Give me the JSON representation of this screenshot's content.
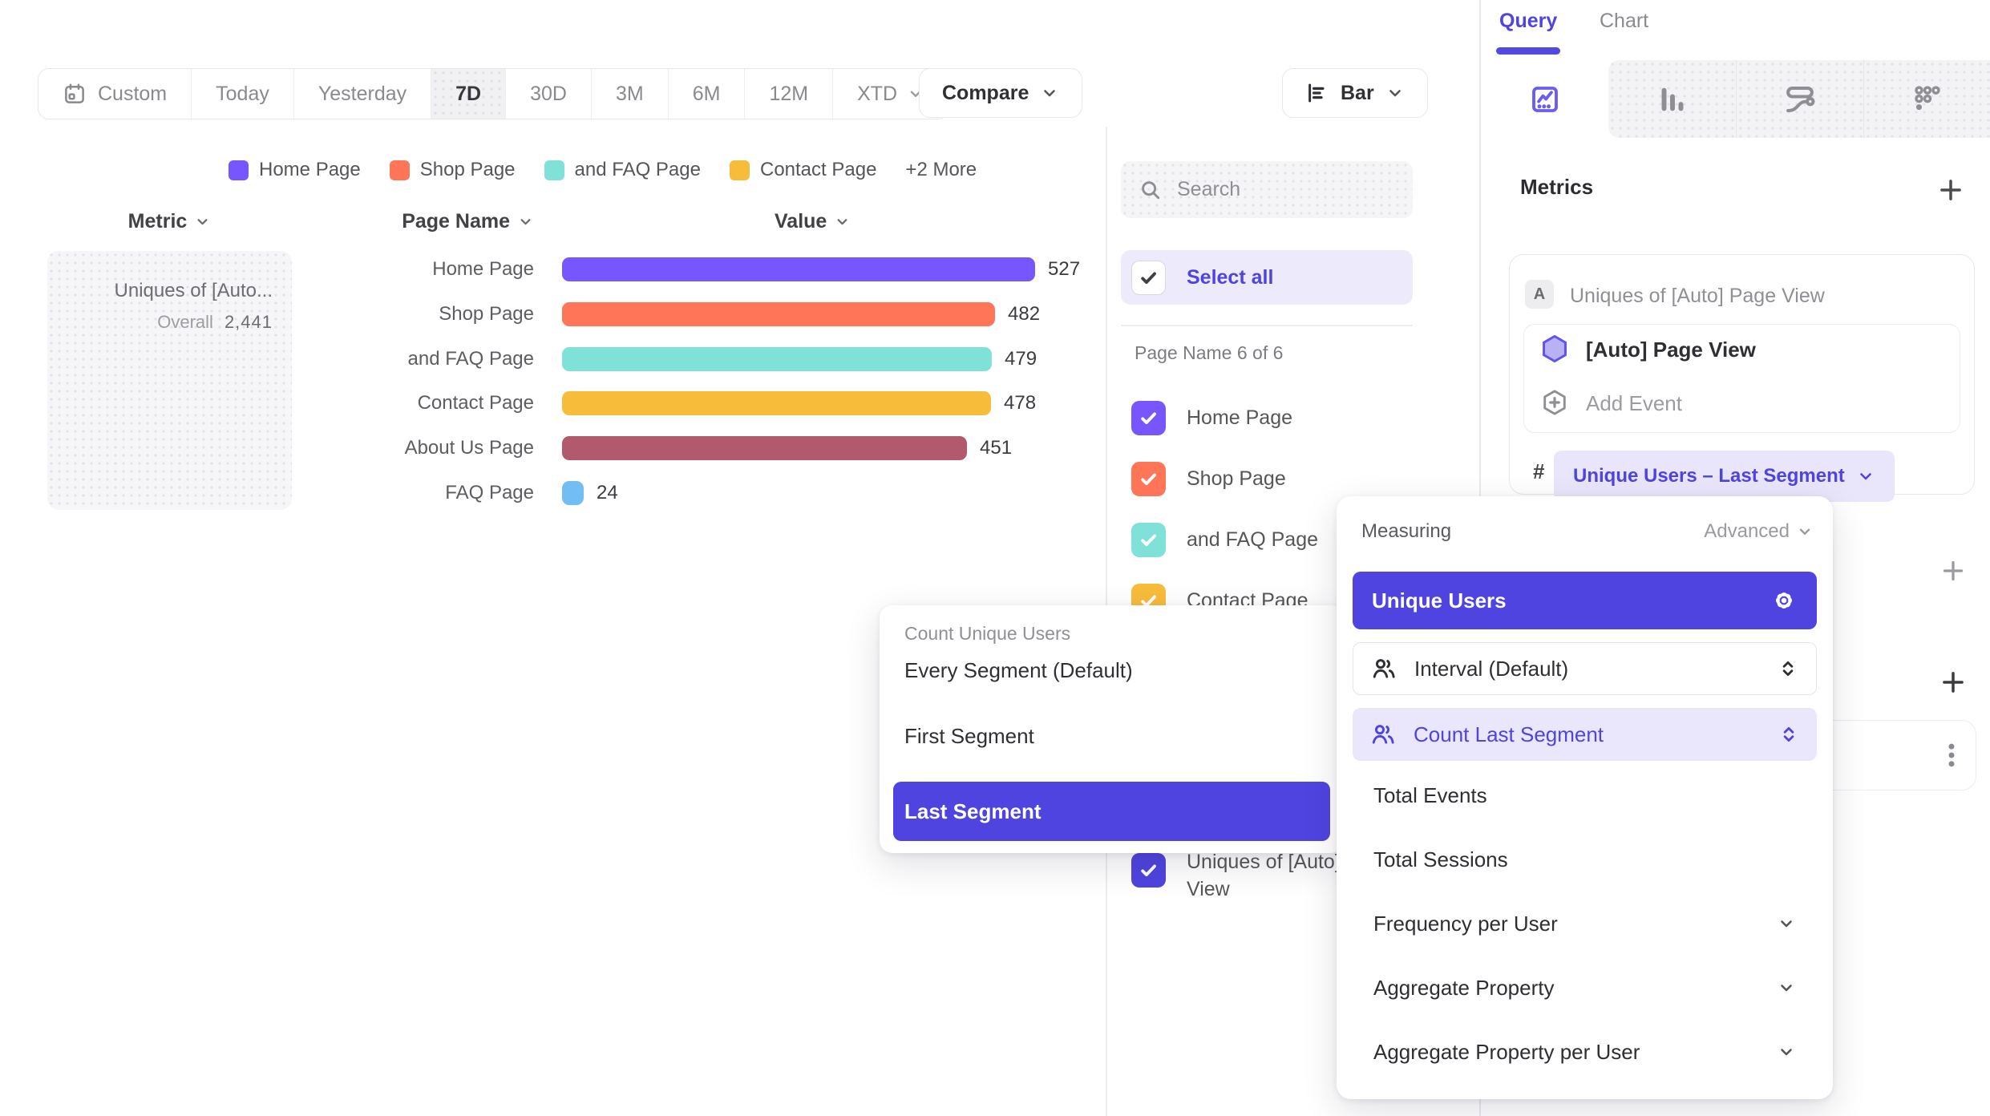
{
  "colors": {
    "accent": "#4F44E0",
    "accent_light_bg": "#E9E6FB",
    "series": [
      "#7856FF",
      "#FF7557",
      "#80E1D9",
      "#F8BC3B",
      "#B2596E",
      "#72BEF4"
    ]
  },
  "toolbar": {
    "ranges": [
      "Custom",
      "Today",
      "Yesterday",
      "7D",
      "30D",
      "3M",
      "6M",
      "12M",
      "XTD"
    ],
    "selected_range": "7D",
    "compare_label": "Compare",
    "chart_type_label": "Bar"
  },
  "legend": {
    "items": [
      {
        "label": "Home Page",
        "color": "#7856FF"
      },
      {
        "label": "Shop Page",
        "color": "#FF7557"
      },
      {
        "label": "and FAQ Page",
        "color": "#80E1D9"
      },
      {
        "label": "Contact Page",
        "color": "#F8BC3B"
      }
    ],
    "more_label": "+2 More"
  },
  "chart": {
    "headers": {
      "metric": "Metric",
      "page": "Page Name",
      "value": "Value"
    },
    "metric_card": {
      "title": "Uniques of [Auto...",
      "overall_label": "Overall",
      "overall_value": "2,441"
    },
    "rows": [
      {
        "label": "Home Page",
        "value": 527,
        "display": "527",
        "color": "#7856FF"
      },
      {
        "label": "Shop Page",
        "value": 482,
        "display": "482",
        "color": "#FF7557"
      },
      {
        "label": "and FAQ Page",
        "value": 479,
        "display": "479",
        "color": "#80E1D9"
      },
      {
        "label": "Contact Page",
        "value": 478,
        "display": "478",
        "color": "#F8BC3B"
      },
      {
        "label": "About Us Page",
        "value": 451,
        "display": "451",
        "color": "#B2596E"
      },
      {
        "label": "FAQ Page",
        "value": 24,
        "display": "24",
        "color": "#72BEF4"
      }
    ],
    "max_value": 527
  },
  "chart_data": {
    "type": "bar",
    "orientation": "horizontal",
    "title": "Uniques of [Auto] Page View",
    "categories": [
      "Home Page",
      "Shop Page",
      "and FAQ Page",
      "Contact Page",
      "About Us Page",
      "FAQ Page"
    ],
    "values": [
      527,
      482,
      479,
      478,
      451,
      24
    ],
    "overall_total": 2441,
    "xlabel": "Value",
    "ylabel": "Page Name",
    "legend_position": "top",
    "grid": false
  },
  "sidebar": {
    "search_placeholder": "Search",
    "select_all_label": "Select all",
    "section_label": "Page Name 6 of 6",
    "items": [
      {
        "label": "Home Page",
        "color": "#7856FF",
        "checked": true
      },
      {
        "label": "Shop Page",
        "color": "#FF7557",
        "checked": true
      },
      {
        "label": "and FAQ Page",
        "color": "#80E1D9",
        "checked": true
      },
      {
        "label": "Contact Page",
        "color": "#F8BC3B",
        "checked": true
      },
      {
        "label": "About Us Page",
        "color": "#B2596E",
        "checked": true
      },
      {
        "label": "FAQ Page",
        "color": "#72BEF4",
        "checked": true
      }
    ],
    "metric_item": {
      "label": "Uniques of [Auto] Page View",
      "color": "#4F44E0",
      "checked": true
    }
  },
  "panel": {
    "tabs": {
      "query": "Query",
      "chart": "Chart",
      "active": "Query"
    },
    "metrics_title": "Metrics",
    "metric_card": {
      "badge": "A",
      "title": "Uniques of [Auto] Page View",
      "event_label": "[Auto] Page View",
      "add_event_label": "Add Event",
      "formula_symbol": "#",
      "measure_pill": "Unique Users – Last Segment"
    }
  },
  "count_popover": {
    "title": "Count Unique Users",
    "items": [
      "Every Segment (Default)",
      "First Segment",
      "Last Segment"
    ],
    "selected": "Last Segment"
  },
  "measuring_popover": {
    "title": "Measuring",
    "advanced_label": "Advanced",
    "selected": "Unique Users",
    "interval_label": "Interval (Default)",
    "count_last_label": "Count Last Segment",
    "items": [
      {
        "label": "Total Events",
        "expandable": false
      },
      {
        "label": "Total Sessions",
        "expandable": false
      },
      {
        "label": "Frequency per User",
        "expandable": true
      },
      {
        "label": "Aggregate Property",
        "expandable": true
      },
      {
        "label": "Aggregate Property per User",
        "expandable": true
      }
    ]
  }
}
